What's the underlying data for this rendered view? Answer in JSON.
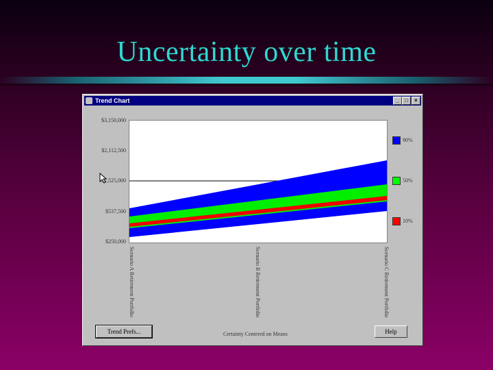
{
  "slide": {
    "title": "Uncertainty over time"
  },
  "window": {
    "title": "Trend Chart",
    "controls": {
      "minimize": "_",
      "maximize": "□",
      "close": "×"
    }
  },
  "chart": {
    "y_ticks": [
      "$3,150,000",
      "$2,112,500",
      "$1,525,000",
      "$537,500",
      "$250,000"
    ],
    "x_labels": [
      "Scenario A Retirement Portfolio",
      "Scenario B Retirement Portfolio",
      "Scenario C Retirement Portfolio"
    ],
    "legend": [
      {
        "label": "90%",
        "color": "#0000ff"
      },
      {
        "label": "50%",
        "color": "#00ff00"
      },
      {
        "label": "10%",
        "color": "#ff0000"
      }
    ]
  },
  "buttons": {
    "trend_prefs": "Trend Prefs...",
    "help": "Help"
  },
  "status_text": "Certainty Centered on Means"
}
